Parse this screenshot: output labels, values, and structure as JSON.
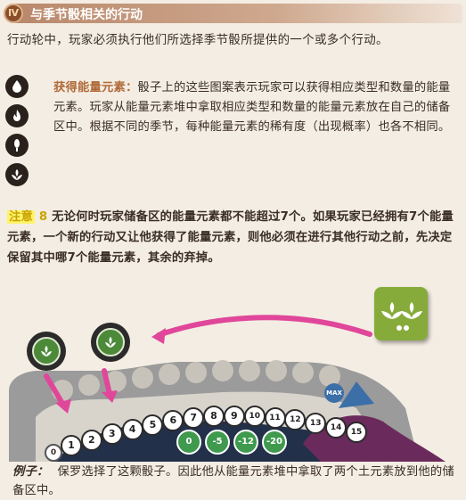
{
  "section": {
    "badge": "Ⅳ",
    "title": "与季节骰相关的行动"
  },
  "intro": "行动轮中，玩家必须执行他们所选择季节骰所提供的一个或多个行动。",
  "energy": {
    "heading": "获得能量元素：",
    "text": "骰子上的这些图案表示玩家可以获得相应类型和数量的能量元素。玩家从能量元素堆中拿取相应类型和数量的能量元素放在自己的储备区中。根据不同的季节，每种能量元素的稀有度（出现概率）也各不相同。",
    "icons": [
      "water-drop-icon",
      "fire-icon",
      "air-icon",
      "earth-icon"
    ]
  },
  "note": {
    "tag": "注意",
    "bullet": "8",
    "text": "无论何时玩家储备区的能量元素都不能超过7个。如果玩家已经拥有7个能量元素，一个新的行动又让他获得了能量元素，则他必须在进行其他行动之前，先决定保留其中哪7个能量元素，其余的弃掉。"
  },
  "example": {
    "track_numbers": [
      "1",
      "2",
      "3",
      "4",
      "5",
      "6",
      "7",
      "8",
      "9",
      "10",
      "11",
      "12",
      "13",
      "14",
      "15"
    ],
    "track_start": "0",
    "penalties": [
      "0",
      "-5",
      "-12",
      "-20"
    ],
    "max_label": "MAX",
    "caption_label": "例子：",
    "caption_text": "保罗选择了这颗骰子。因此他从能量元素堆中拿取了两个土元素放到他的储备区中。"
  },
  "colors": {
    "accent": "#b06a3a",
    "earth_green": "#86ab3b",
    "arrow_pink": "#e0479a",
    "highlight_yellow": "#fff36a"
  }
}
